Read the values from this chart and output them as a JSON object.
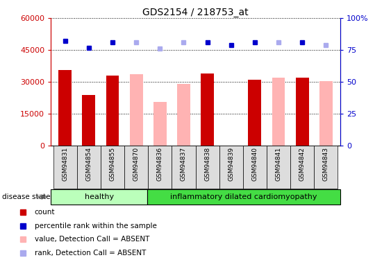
{
  "title": "GDS2154 / 218753_at",
  "samples": [
    "GSM94831",
    "GSM94854",
    "GSM94855",
    "GSM94870",
    "GSM94836",
    "GSM94837",
    "GSM94838",
    "GSM94839",
    "GSM94840",
    "GSM94841",
    "GSM94842",
    "GSM94843"
  ],
  "count_values": [
    35500,
    24000,
    33000,
    null,
    null,
    null,
    34000,
    null,
    31000,
    null,
    32000,
    null
  ],
  "absent_values": [
    null,
    null,
    null,
    33500,
    20500,
    29000,
    null,
    null,
    null,
    32000,
    null,
    30500
  ],
  "percentile_present": [
    82,
    77,
    81,
    null,
    null,
    null,
    81,
    79,
    81,
    null,
    81,
    null
  ],
  "percentile_absent": [
    null,
    null,
    null,
    81,
    76,
    81,
    null,
    null,
    null,
    81,
    null,
    79
  ],
  "count_color": "#cc0000",
  "absent_bar_color": "#ffb3b3",
  "percentile_present_color": "#0000cc",
  "percentile_absent_color": "#aaaaee",
  "ylim_left": [
    0,
    60000
  ],
  "ylim_right": [
    0,
    100
  ],
  "yticks_left": [
    0,
    15000,
    30000,
    45000,
    60000
  ],
  "yticks_right": [
    0,
    25,
    50,
    75,
    100
  ],
  "healthy_samples": 4,
  "total_samples": 12,
  "healthy_label": "healthy",
  "disease_label": "inflammatory dilated cardiomyopathy",
  "disease_state_label": "disease state",
  "legend_items": [
    "count",
    "percentile rank within the sample",
    "value, Detection Call = ABSENT",
    "rank, Detection Call = ABSENT"
  ],
  "healthy_color": "#bbffbb",
  "disease_color": "#44dd44",
  "axis_bg_color": "#ffffff",
  "tick_label_bg": "#dddddd"
}
